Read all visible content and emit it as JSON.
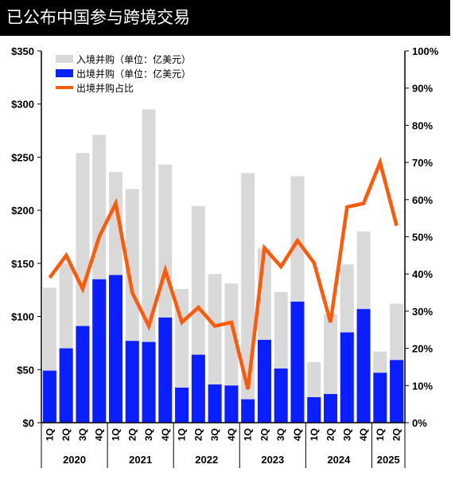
{
  "title": "已公布中国参与跨境交易",
  "colors": {
    "inbound": "#d9d9d9",
    "outbound": "#0a1eff",
    "share": "#ff5a0a"
  },
  "chart_data": {
    "type": "bar",
    "categories": [
      "1Q",
      "2Q",
      "3Q",
      "4Q",
      "1Q",
      "2Q",
      "3Q",
      "4Q",
      "1Q",
      "2Q",
      "3Q",
      "4Q",
      "1Q",
      "2Q",
      "3Q",
      "4Q",
      "1Q",
      "2Q",
      "3Q",
      "4Q",
      "1Q",
      "2Q"
    ],
    "years": [
      {
        "label": "2020",
        "count": 4
      },
      {
        "label": "2021",
        "count": 4
      },
      {
        "label": "2022",
        "count": 4
      },
      {
        "label": "2023",
        "count": 4
      },
      {
        "label": "2024",
        "count": 4
      },
      {
        "label": "2025",
        "count": 2
      }
    ],
    "series": [
      {
        "name": "入境并购（单位：亿美元）",
        "kind": "bar",
        "values": [
          127,
          150,
          254,
          271,
          236,
          220,
          295,
          243,
          126,
          204,
          140,
          131,
          235,
          164,
          123,
          232,
          57,
          102,
          149,
          180,
          67,
          112
        ]
      },
      {
        "name": "出境并购（单位：亿美元）",
        "kind": "bar",
        "values": [
          49,
          70,
          91,
          135,
          139,
          77,
          76,
          99,
          33,
          64,
          36,
          35,
          22,
          78,
          51,
          114,
          24,
          27,
          85,
          107,
          47,
          59
        ]
      },
      {
        "name": "出境并购占比",
        "kind": "line",
        "axis": "right",
        "values": [
          39,
          45,
          36,
          50,
          59,
          35,
          26,
          41,
          27,
          31,
          26,
          27,
          9,
          47,
          42,
          49,
          43,
          27,
          58,
          59,
          70,
          53
        ]
      }
    ],
    "y_left": {
      "min": 0,
      "max": 350,
      "ticks": [
        "$0",
        "$50",
        "$100",
        "$150",
        "$200",
        "$250",
        "$300",
        "$350"
      ]
    },
    "y_right": {
      "min": 0,
      "max": 100,
      "ticks": [
        "0%",
        "10%",
        "20%",
        "30%",
        "40%",
        "50%",
        "60%",
        "70%",
        "80%",
        "90%",
        "100%"
      ]
    },
    "legend_position": "top-left"
  }
}
